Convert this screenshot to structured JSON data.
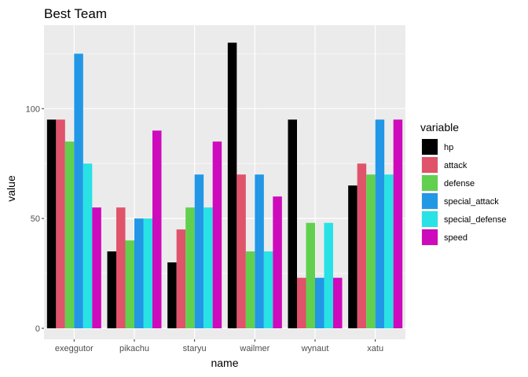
{
  "chart_data": {
    "type": "bar",
    "title": "Best Team",
    "xlabel": "name",
    "ylabel": "value",
    "ylim": [
      0,
      135
    ],
    "yticks": [
      0,
      50,
      100
    ],
    "grid": true,
    "legend": {
      "title": "variable",
      "placement": "right"
    },
    "categories": [
      "exeggutor",
      "pikachu",
      "staryu",
      "wailmer",
      "wynaut",
      "xatu"
    ],
    "series": [
      {
        "name": "hp",
        "color": "#000000",
        "values": [
          95,
          35,
          30,
          130,
          95,
          65
        ]
      },
      {
        "name": "attack",
        "color": "#DF536B",
        "values": [
          95,
          55,
          45,
          70,
          23,
          75
        ]
      },
      {
        "name": "defense",
        "color": "#61D04F",
        "values": [
          85,
          40,
          55,
          35,
          48,
          70
        ]
      },
      {
        "name": "special_attack",
        "color": "#2297E6",
        "values": [
          125,
          50,
          70,
          70,
          23,
          95
        ]
      },
      {
        "name": "special_defense",
        "color": "#28E2E5",
        "values": [
          75,
          50,
          55,
          35,
          48,
          70
        ]
      },
      {
        "name": "speed",
        "color": "#CD0BBC",
        "values": [
          55,
          90,
          85,
          60,
          23,
          95
        ]
      }
    ]
  }
}
